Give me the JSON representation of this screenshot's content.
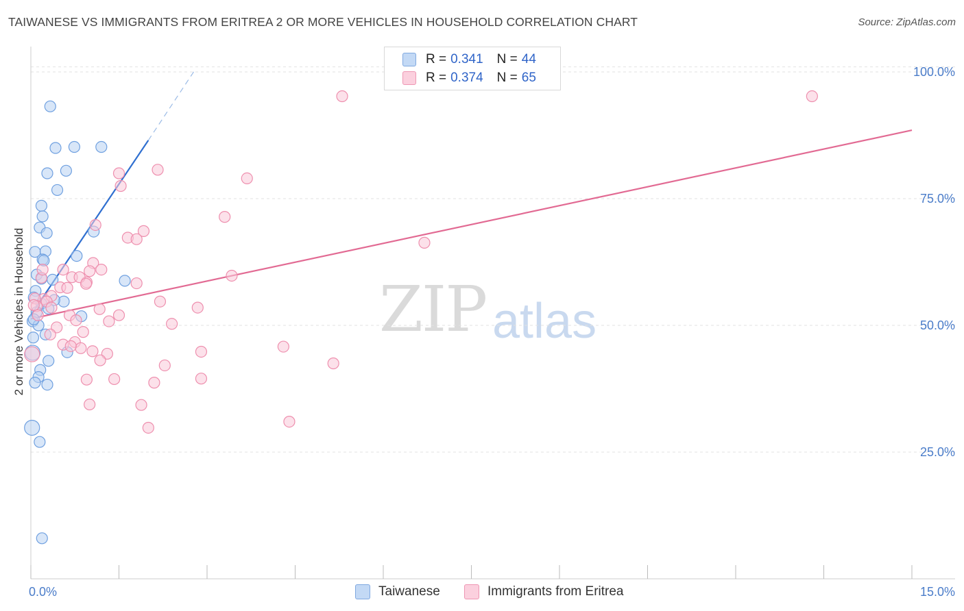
{
  "title": "TAIWANESE VS IMMIGRANTS FROM ERITREA 2 OR MORE VEHICLES IN HOUSEHOLD CORRELATION CHART",
  "source": "Source: ZipAtlas.com",
  "watermark": {
    "zip": "ZIP",
    "atlas": "atlas"
  },
  "legend": {
    "rows": [
      {
        "r_label": "R =",
        "r_value": "0.341",
        "n_label": "N =",
        "n_value": "44",
        "color": "#a8c8f0"
      },
      {
        "r_label": "R =",
        "r_value": "0.374",
        "n_label": "N =",
        "n_value": "65",
        "color": "#f7b8cc"
      }
    ]
  },
  "bottom_legend": [
    "Taiwanese",
    "Immigrants from Eritrea"
  ],
  "chart_data": {
    "type": "scatter",
    "title": "TAIWANESE VS IMMIGRANTS FROM ERITREA 2 OR MORE VEHICLES IN HOUSEHOLD CORRELATION CHART",
    "xlabel": "",
    "ylabel": "2 or more Vehicles in Household",
    "xlim": [
      0,
      15
    ],
    "ylim": [
      0,
      105
    ],
    "x_ticks": [
      "0.0%",
      "15.0%"
    ],
    "y_ticks": [
      "25.0%",
      "50.0%",
      "75.0%",
      "100.0%"
    ],
    "y_tick_values": [
      25,
      50,
      75,
      100
    ],
    "grid": true,
    "legend_position": "top-center",
    "series": [
      {
        "name": "Taiwanese",
        "color": "#6fa0e0",
        "fill": "#b8d2f3",
        "trend_color": "#2f6fd0",
        "points": [
          [
            0.33,
            93.2
          ],
          [
            0.42,
            85.0
          ],
          [
            0.74,
            85.2
          ],
          [
            1.2,
            85.2
          ],
          [
            0.28,
            80.0
          ],
          [
            0.6,
            80.5
          ],
          [
            0.45,
            76.7
          ],
          [
            0.18,
            73.6
          ],
          [
            0.2,
            71.5
          ],
          [
            0.15,
            69.3
          ],
          [
            0.27,
            68.2
          ],
          [
            1.07,
            68.5
          ],
          [
            0.07,
            64.5
          ],
          [
            0.25,
            64.6
          ],
          [
            0.78,
            63.7
          ],
          [
            0.2,
            63.0
          ],
          [
            0.22,
            62.8
          ],
          [
            0.1,
            60.0
          ],
          [
            0.18,
            59.2
          ],
          [
            0.37,
            59.0
          ],
          [
            1.6,
            58.8
          ],
          [
            0.08,
            56.8
          ],
          [
            0.05,
            55.5
          ],
          [
            0.56,
            54.7
          ],
          [
            0.18,
            54.3
          ],
          [
            0.3,
            53.3
          ],
          [
            0.1,
            52.6
          ],
          [
            0.86,
            51.8
          ],
          [
            0.03,
            50.8
          ],
          [
            0.13,
            50.0
          ],
          [
            0.25,
            48.2
          ],
          [
            0.04,
            47.6
          ],
          [
            0.03,
            44.6
          ],
          [
            0.62,
            44.7
          ],
          [
            0.3,
            43.0
          ],
          [
            0.16,
            41.2
          ],
          [
            0.13,
            39.8
          ],
          [
            0.07,
            38.7
          ],
          [
            0.28,
            38.3
          ],
          [
            0.02,
            29.8
          ],
          [
            0.15,
            27.0
          ],
          [
            0.19,
            8.0
          ],
          [
            0.05,
            51.2
          ],
          [
            0.4,
            55.0
          ]
        ],
        "trend": {
          "x0": 0,
          "y0": 52.0,
          "x1": 2.0,
          "y1": 86.5,
          "dash_to_x": 2.8,
          "dash_to_y": 100.5
        }
      },
      {
        "name": "Immigrants from Eritrea",
        "color": "#ee8fae",
        "fill": "#f9c9d8",
        "trend_color": "#e26a93",
        "points": [
          [
            5.3,
            95.2
          ],
          [
            13.3,
            95.2
          ],
          [
            2.16,
            80.7
          ],
          [
            1.5,
            80.0
          ],
          [
            3.68,
            79.0
          ],
          [
            1.53,
            77.5
          ],
          [
            3.3,
            71.4
          ],
          [
            1.1,
            69.8
          ],
          [
            1.92,
            68.6
          ],
          [
            1.65,
            67.3
          ],
          [
            1.8,
            67.0
          ],
          [
            6.7,
            66.3
          ],
          [
            1.06,
            62.3
          ],
          [
            1.0,
            60.7
          ],
          [
            0.95,
            58.5
          ],
          [
            1.2,
            61.0
          ],
          [
            0.55,
            61.0
          ],
          [
            3.42,
            59.8
          ],
          [
            0.7,
            59.5
          ],
          [
            0.18,
            59.4
          ],
          [
            0.83,
            59.5
          ],
          [
            1.8,
            58.3
          ],
          [
            0.5,
            57.5
          ],
          [
            0.62,
            57.4
          ],
          [
            0.94,
            58.2
          ],
          [
            0.22,
            55.2
          ],
          [
            0.35,
            55.8
          ],
          [
            0.07,
            55.3
          ],
          [
            0.27,
            54.7
          ],
          [
            0.1,
            53.8
          ],
          [
            0.05,
            54.0
          ],
          [
            0.12,
            52.0
          ],
          [
            0.66,
            52.0
          ],
          [
            1.17,
            53.2
          ],
          [
            1.5,
            52.0
          ],
          [
            2.2,
            54.7
          ],
          [
            2.84,
            53.5
          ],
          [
            0.77,
            51.0
          ],
          [
            1.33,
            50.8
          ],
          [
            2.4,
            50.3
          ],
          [
            0.44,
            49.6
          ],
          [
            0.89,
            48.7
          ],
          [
            0.33,
            48.2
          ],
          [
            0.55,
            46.2
          ],
          [
            0.75,
            46.7
          ],
          [
            0.85,
            45.5
          ],
          [
            0.68,
            45.9
          ],
          [
            4.3,
            45.8
          ],
          [
            1.05,
            44.9
          ],
          [
            2.9,
            44.8
          ],
          [
            1.3,
            44.4
          ],
          [
            1.18,
            43.1
          ],
          [
            5.15,
            42.5
          ],
          [
            2.28,
            42.1
          ],
          [
            0.95,
            39.3
          ],
          [
            1.42,
            39.4
          ],
          [
            2.9,
            39.5
          ],
          [
            2.1,
            38.7
          ],
          [
            1.0,
            34.4
          ],
          [
            1.88,
            34.3
          ],
          [
            4.4,
            31.0
          ],
          [
            2.0,
            29.8
          ],
          [
            0.02,
            44.3
          ],
          [
            0.2,
            61.0
          ],
          [
            0.35,
            53.5
          ]
        ],
        "trend": {
          "x0": 0,
          "y0": 51.3,
          "x1": 15.0,
          "y1": 88.5
        }
      }
    ]
  }
}
